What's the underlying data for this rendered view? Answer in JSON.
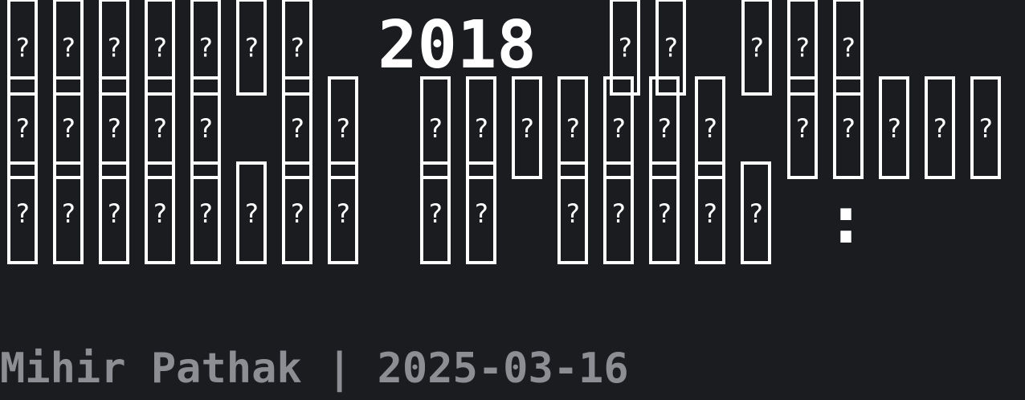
{
  "title": {
    "year": "2018",
    "colon": ":",
    "missing_glyph": "?"
  },
  "byline": "Mihir Pathak | 2025-03-16",
  "colors": {
    "background": "#1b1c20",
    "title_text": "#ffffff",
    "byline_text": "#8d8e93"
  }
}
